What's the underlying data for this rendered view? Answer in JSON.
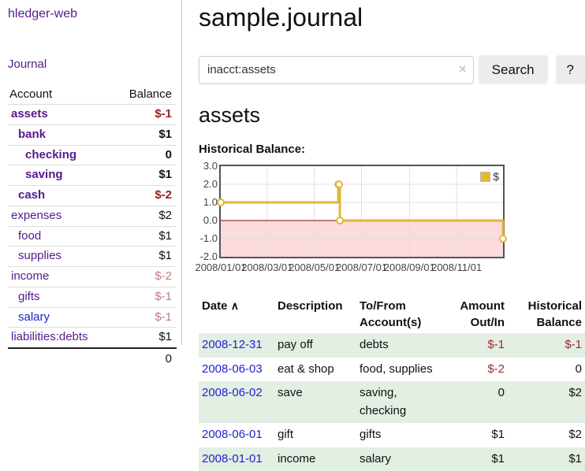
{
  "sidebar": {
    "brand": "hledger-web",
    "nav_journal": "Journal",
    "table": {
      "headers": [
        "Account",
        "Balance"
      ],
      "rows": [
        {
          "name": "assets",
          "indent": 1,
          "bold": true,
          "balance": "$-1",
          "balance_class": "neg-strong"
        },
        {
          "name": "bank",
          "indent": 2,
          "bold": true,
          "balance": "$1",
          "balance_class": ""
        },
        {
          "name": "checking",
          "indent": 3,
          "bold": true,
          "balance": "0",
          "balance_class": ""
        },
        {
          "name": "saving",
          "indent": 3,
          "bold": true,
          "balance": "$1",
          "balance_class": ""
        },
        {
          "name": "cash",
          "indent": 2,
          "bold": true,
          "balance": "$-2",
          "balance_class": "neg-strong"
        },
        {
          "name": "expenses",
          "indent": 1,
          "bold": false,
          "balance": "$2",
          "balance_class": ""
        },
        {
          "name": "food",
          "indent": 2,
          "bold": false,
          "balance": "$1",
          "balance_class": ""
        },
        {
          "name": "supplies",
          "indent": 2,
          "bold": false,
          "balance": "$1",
          "balance_class": ""
        },
        {
          "name": "income",
          "indent": 1,
          "bold": false,
          "balance": "$-2",
          "balance_class": "neg-soft"
        },
        {
          "name": "gifts",
          "indent": 2,
          "bold": false,
          "balance": "$-1",
          "balance_class": "neg-soft"
        },
        {
          "name": "salary",
          "indent": 2,
          "bold": false,
          "balance": "$-1",
          "balance_class": "neg-soft",
          "link_blue": true
        },
        {
          "name": "liabilities:debts",
          "indent": 1,
          "bold": false,
          "balance": "$1",
          "balance_class": ""
        }
      ],
      "total": "0"
    }
  },
  "header": {
    "title": "sample.journal"
  },
  "search": {
    "query": "inacct:assets",
    "clear_icon": "×",
    "search_label": "Search",
    "help_label": "?"
  },
  "account_page": {
    "title": "assets",
    "chart_caption": "Historical Balance:"
  },
  "chart_data": {
    "type": "line",
    "step": true,
    "series": [
      {
        "name": "$",
        "color": "#e3b53a",
        "points": [
          [
            "2008-01-01",
            1
          ],
          [
            "2008-06-01",
            2
          ],
          [
            "2008-06-02",
            2
          ],
          [
            "2008-06-03",
            0
          ],
          [
            "2008-12-31",
            -1
          ]
        ]
      }
    ],
    "x_range": [
      "2008-01-01",
      "2008-12-31"
    ],
    "x_ticks": [
      "2008/01/01",
      "2008/03/01",
      "2008/05/01",
      "2008/07/01",
      "2008/09/01",
      "2008/11/01"
    ],
    "y_ticks": [
      "3.0",
      "2.0",
      "1.0",
      "0.0",
      "-1.0",
      "-2.0"
    ],
    "ylim": [
      -2,
      3
    ],
    "grid": true,
    "negative_region_color": "#fbdbdb",
    "zero_line_color": "#8b0000",
    "legend": {
      "label": "$",
      "position": "top-right",
      "swatch_color": "#e6b82d"
    }
  },
  "register": {
    "sort_icon": "∧",
    "headers": [
      {
        "lines": [
          "Date"
        ],
        "align": "left",
        "sorted": true
      },
      {
        "lines": [
          "Description"
        ],
        "align": "left"
      },
      {
        "lines": [
          "To/From",
          "Account(s)"
        ],
        "align": "left"
      },
      {
        "lines": [
          "Amount",
          "Out/In"
        ],
        "align": "right"
      },
      {
        "lines": [
          "Historical",
          "Balance"
        ],
        "align": "right"
      }
    ],
    "rows": [
      {
        "date": "2008-12-31",
        "description": "pay off",
        "accounts": "debts",
        "amount": "$-1",
        "amount_neg": true,
        "balance": "$-1",
        "balance_neg": true
      },
      {
        "date": "2008-06-03",
        "description": "eat & shop",
        "accounts": "food, supplies",
        "amount": "$-2",
        "amount_neg": true,
        "balance": "0",
        "balance_neg": false
      },
      {
        "date": "2008-06-02",
        "description": "save",
        "accounts": "saving, checking",
        "amount": "0",
        "amount_neg": false,
        "balance": "$2",
        "balance_neg": false
      },
      {
        "date": "2008-06-01",
        "description": "gift",
        "accounts": "gifts",
        "amount": "$1",
        "amount_neg": false,
        "balance": "$2",
        "balance_neg": false
      },
      {
        "date": "2008-01-01",
        "description": "income",
        "accounts": "salary",
        "amount": "$1",
        "amount_neg": false,
        "balance": "$1",
        "balance_neg": false
      }
    ]
  },
  "colors": {
    "link_purple": "#551a8b",
    "link_blue": "#2222cc",
    "negative_strong": "#941f1f",
    "negative_soft": "#c47c7c",
    "register_negative": "#9a2b2b",
    "row_green": "#e2efe2",
    "chart_line": "#e3b53a",
    "chart_negative_fill": "#fbdbdb",
    "zero_line": "#8b0000"
  }
}
